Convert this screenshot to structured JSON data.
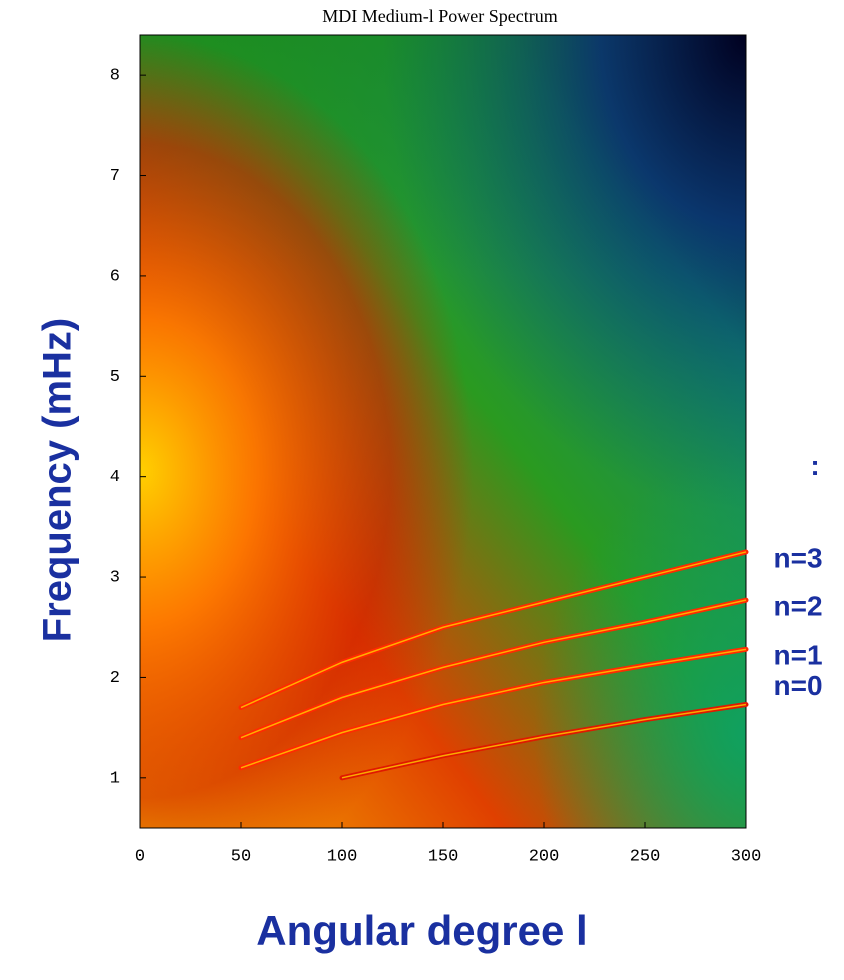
{
  "chart_data": {
    "type": "line",
    "title": "MDI Medium-l Power Spectrum",
    "x_label": "Angular degree l",
    "y_label": "Frequency (mHz)",
    "xlim": [
      0,
      300
    ],
    "xticks": [
      0,
      50,
      100,
      150,
      200,
      250,
      300
    ],
    "ylim": [
      0.5,
      8.4
    ],
    "yticks": [
      1,
      2,
      3,
      4,
      5,
      6,
      7,
      8
    ],
    "x": [
      50,
      100,
      150,
      200,
      250,
      300
    ],
    "series": [
      {
        "name": "n=3",
        "color": "#ff2a00",
        "values": [
          1.7,
          2.15,
          2.5,
          2.75,
          3.0,
          3.25
        ]
      },
      {
        "name": "n=2",
        "color": "#ff2a00",
        "values": [
          1.4,
          1.8,
          2.1,
          2.35,
          2.55,
          2.77
        ]
      },
      {
        "name": "n=1",
        "color": "#ff2a00",
        "values": [
          1.1,
          1.45,
          1.73,
          1.95,
          2.12,
          2.28
        ]
      },
      {
        "name": "n=0",
        "color": "#e01800",
        "values": [
          null,
          1.0,
          1.22,
          1.41,
          1.58,
          1.73
        ]
      }
    ],
    "annotations": [
      ":"
    ]
  }
}
